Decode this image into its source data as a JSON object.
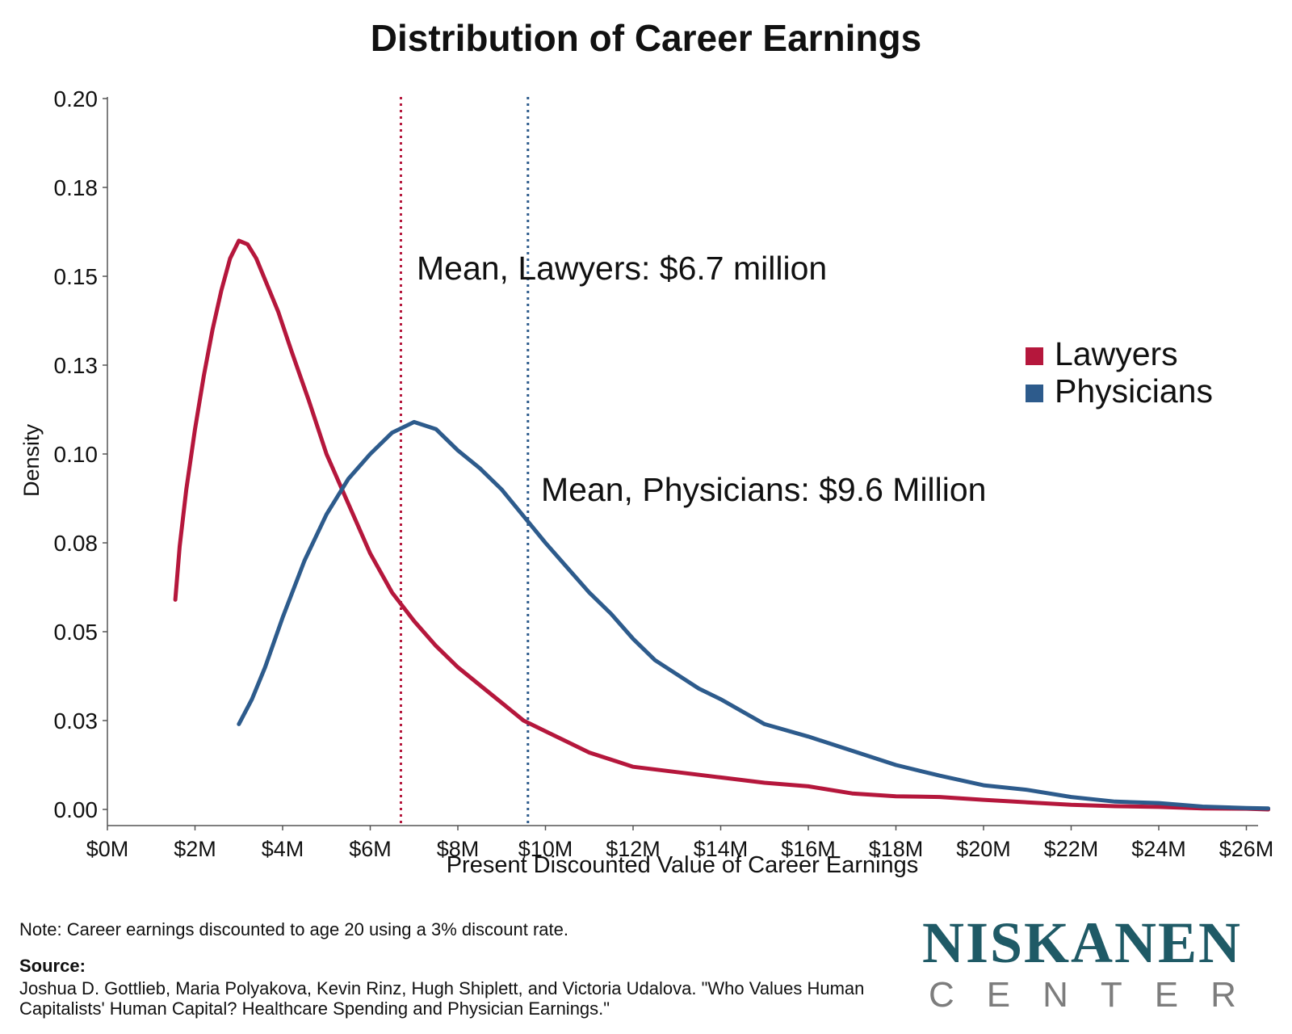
{
  "chart_data": {
    "type": "line",
    "title": "Distribution of Career Earnings",
    "xlabel": "Present Discounted Value of Career Earnings",
    "ylabel": "Density",
    "xlim": [
      0,
      26.5
    ],
    "ylim": [
      0,
      0.2
    ],
    "x_ticks": [
      {
        "value": 0,
        "label": "$0M"
      },
      {
        "value": 2,
        "label": "$2M"
      },
      {
        "value": 4,
        "label": "$4M"
      },
      {
        "value": 6,
        "label": "$6M"
      },
      {
        "value": 8,
        "label": "$8M"
      },
      {
        "value": 10,
        "label": "$10M"
      },
      {
        "value": 12,
        "label": "$12M"
      },
      {
        "value": 14,
        "label": "$14M"
      },
      {
        "value": 16,
        "label": "$16M"
      },
      {
        "value": 18,
        "label": "$18M"
      },
      {
        "value": 20,
        "label": "$20M"
      },
      {
        "value": 22,
        "label": "$22M"
      },
      {
        "value": 24,
        "label": "$24M"
      },
      {
        "value": 26,
        "label": "$26M"
      }
    ],
    "y_ticks": [
      {
        "value": 0,
        "label": "0.00"
      },
      {
        "value": 0.025,
        "label": "0.03"
      },
      {
        "value": 0.05,
        "label": "0.05"
      },
      {
        "value": 0.075,
        "label": "0.08"
      },
      {
        "value": 0.1,
        "label": "0.10"
      },
      {
        "value": 0.125,
        "label": "0.13"
      },
      {
        "value": 0.15,
        "label": "0.15"
      },
      {
        "value": 0.175,
        "label": "0.18"
      },
      {
        "value": 0.2,
        "label": "0.20"
      }
    ],
    "legend_position": "right",
    "series": [
      {
        "name": "Lawyers",
        "color": "#b5173c",
        "x": [
          1.55,
          1.65,
          1.8,
          2.0,
          2.2,
          2.4,
          2.6,
          2.8,
          3.0,
          3.2,
          3.4,
          3.6,
          3.9,
          4.2,
          4.6,
          5.0,
          5.5,
          6.0,
          6.5,
          7.0,
          7.5,
          8.0,
          8.5,
          9.0,
          9.5,
          10.0,
          10.5,
          11.0,
          11.5,
          12.0,
          13.0,
          14.0,
          15.0,
          16.0,
          17.0,
          18.0,
          19.0,
          20.0,
          21.0,
          22.0,
          23.0,
          24.0,
          25.0,
          26.0,
          26.5
        ],
        "y": [
          0.059,
          0.074,
          0.09,
          0.107,
          0.122,
          0.135,
          0.146,
          0.155,
          0.16,
          0.159,
          0.155,
          0.149,
          0.14,
          0.129,
          0.115,
          0.1,
          0.086,
          0.072,
          0.061,
          0.053,
          0.046,
          0.04,
          0.035,
          0.03,
          0.025,
          0.022,
          0.019,
          0.016,
          0.014,
          0.012,
          0.0105,
          0.009,
          0.0075,
          0.0065,
          0.0045,
          0.0037,
          0.0035,
          0.0027,
          0.002,
          0.0013,
          0.0009,
          0.0007,
          0.0003,
          0.0002,
          0.0
        ]
      },
      {
        "name": "Physicians",
        "color": "#2d5b8c",
        "x": [
          3.0,
          3.3,
          3.6,
          4.0,
          4.5,
          5.0,
          5.5,
          6.0,
          6.5,
          7.0,
          7.5,
          8.0,
          8.5,
          9.0,
          9.6,
          10.0,
          10.5,
          11.0,
          11.5,
          12.0,
          12.5,
          13.0,
          13.5,
          14.0,
          15.0,
          16.0,
          17.0,
          18.0,
          19.0,
          20.0,
          21.0,
          22.0,
          23.0,
          24.0,
          25.0,
          26.0,
          26.5
        ],
        "y": [
          0.024,
          0.031,
          0.04,
          0.054,
          0.07,
          0.083,
          0.093,
          0.1,
          0.106,
          0.109,
          0.107,
          0.101,
          0.096,
          0.09,
          0.081,
          0.075,
          0.068,
          0.061,
          0.055,
          0.048,
          0.042,
          0.038,
          0.034,
          0.031,
          0.024,
          0.0205,
          0.0165,
          0.0125,
          0.0095,
          0.0068,
          0.0055,
          0.0035,
          0.0022,
          0.0018,
          0.0008,
          0.0004,
          0.0003
        ]
      }
    ],
    "reference_lines": [
      {
        "x": 6.7,
        "color": "#b5173c",
        "label": "Mean, Lawyers: $6.7 million"
      },
      {
        "x": 9.6,
        "color": "#2d5b8c",
        "label": "Mean, Physicians: $9.6 Million"
      }
    ]
  },
  "note": "Note: Career earnings discounted to age 20 using a 3% discount rate.",
  "source_heading": "Source:",
  "source_text": "Joshua D. Gottlieb, Maria Polyakova, Kevin Rinz, Hugh Shiplett, and Victoria Udalova. \"Who Values Human Capitalists' Human Capital? Healthcare Spending and Physician Earnings.\"",
  "logo": {
    "top": "NISKANEN",
    "bottom": "CENTER"
  }
}
